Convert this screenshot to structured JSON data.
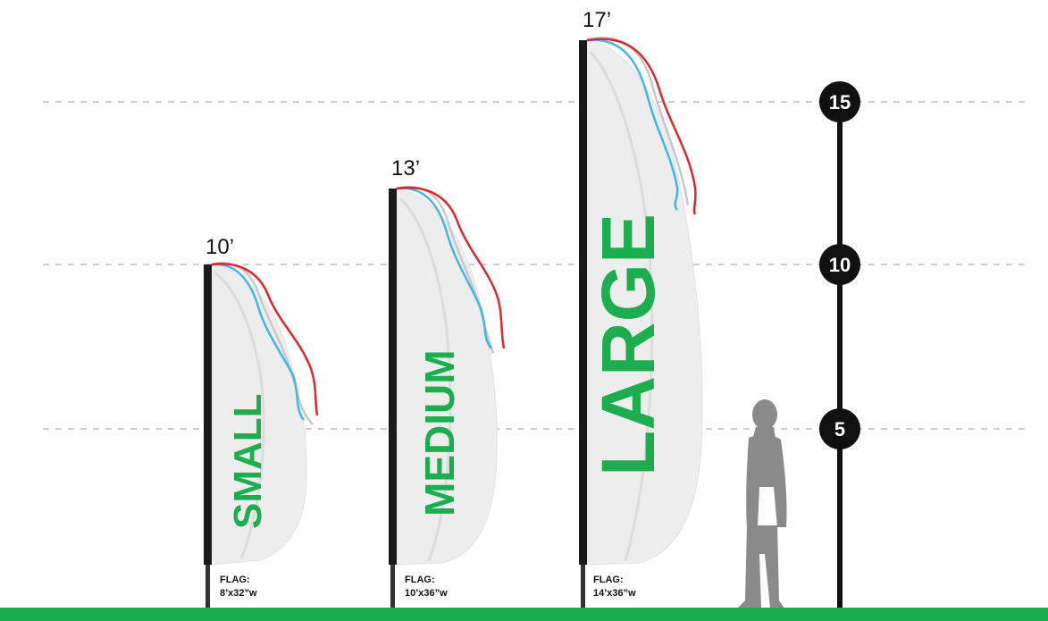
{
  "colors": {
    "ground": "#1cae4e",
    "flag_text": "#1cae4e",
    "pole": "#1a1a1a",
    "flag_fill": "#ededed",
    "ribbon_red": "#e0262c",
    "ribbon_blue": "#3fb7e8",
    "ribbon_gray": "#c8c8c8",
    "silhouette": "#8a8a8a",
    "gridline": "#bdbdbd"
  },
  "scale": {
    "marks": [
      {
        "value": "15"
      },
      {
        "value": "10"
      },
      {
        "value": "5"
      }
    ]
  },
  "flags": [
    {
      "size_word": "SMALL",
      "height_label": "10’",
      "spec_line1": "FLAG:",
      "spec_line2": "8’x32”w"
    },
    {
      "size_word": "MEDIUM",
      "height_label": "13’",
      "spec_line1": "FLAG:",
      "spec_line2": "10’x36”w"
    },
    {
      "size_word": "LARGE",
      "height_label": "17’",
      "spec_line1": "FLAG:",
      "spec_line2": "14’x36”w"
    }
  ],
  "icons": {
    "person": "person-silhouette-icon"
  }
}
